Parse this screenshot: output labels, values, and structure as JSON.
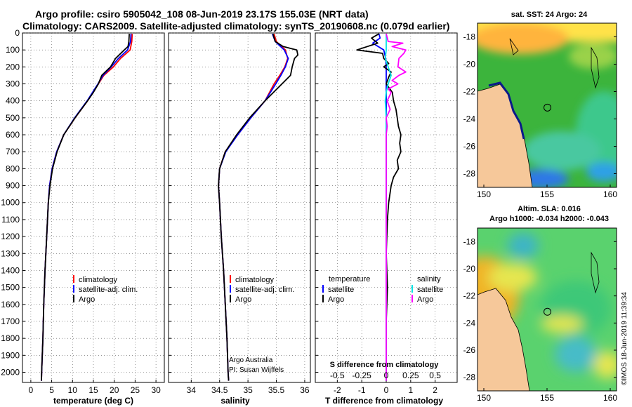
{
  "header": {
    "title_line1": "Argo profile: csiro 5905042_108 08-Jun-2019 23.17S 155.03E (NRT data)",
    "title_line2": "Climatology: CARS2009. Satellite-adjusted climatology: synTS_20190608.nc (0.079d earlier)"
  },
  "colors": {
    "climatology": "#ff0000",
    "satellite": "#0000ff",
    "argo": "#000000",
    "s_satellite": "#00e6e6",
    "s_argo": "#ff00ff",
    "land": "#f6c89a",
    "gridline": "#555555"
  },
  "depth_axis": {
    "ylim": [
      0,
      2060
    ],
    "ticks": [
      0,
      100,
      200,
      300,
      400,
      500,
      600,
      700,
      800,
      900,
      1000,
      1100,
      1200,
      1300,
      1400,
      1500,
      1600,
      1700,
      1800,
      1900,
      2000
    ],
    "tick_labels": [
      "0",
      "100",
      "200",
      "300",
      "400",
      "500",
      "600",
      "700",
      "800",
      "900",
      "1000",
      "1100",
      "1200",
      "1300",
      "1400",
      "1500",
      "1600",
      "1700",
      "1800",
      "1900",
      "2000"
    ]
  },
  "footer": {
    "credit1": "Argo Australia",
    "credit2": "PI: Susan Wijffels",
    "stamp": "©IMOS 18-Jun-2019 11:39:34"
  },
  "chart_data": [
    {
      "type": "line",
      "title": "",
      "xlabel": "temperature (deg C)",
      "ylabel": "",
      "xlim": [
        -2,
        32
      ],
      "ylim": [
        2060,
        0
      ],
      "x_ticks": [
        0,
        5,
        10,
        15,
        20,
        25,
        30
      ],
      "x_tick_labels": [
        "0",
        "5",
        "10",
        "15",
        "20",
        "25",
        "30"
      ],
      "legend": [
        "climatology",
        "satellite-adj. clim.",
        "Argo"
      ],
      "legend_placement": "lower-right",
      "series": [
        {
          "name": "climatology",
          "color_key": "climatology",
          "depth": [
            5,
            50,
            100,
            150,
            200,
            250,
            300,
            400,
            500,
            600,
            700,
            800,
            900,
            1000,
            1200,
            1400,
            1600,
            1800,
            2000,
            2050
          ],
          "values": [
            24.3,
            24.2,
            23.8,
            21.5,
            19.8,
            17.5,
            16.2,
            13.6,
            10.6,
            7.9,
            6.2,
            5.1,
            4.5,
            4.2,
            3.8,
            3.4,
            3.1,
            2.9,
            2.6,
            2.55
          ]
        },
        {
          "name": "satellite-adj. clim.",
          "color_key": "satellite",
          "depth": [
            5,
            50,
            100,
            150,
            200,
            250,
            300,
            400,
            500,
            600,
            700,
            800,
            900,
            1000,
            1200,
            1400,
            1600,
            1800,
            2000,
            2050
          ],
          "values": [
            24.0,
            23.9,
            23.2,
            21.0,
            19.3,
            17.3,
            16.1,
            13.5,
            10.5,
            7.9,
            6.2,
            5.1,
            4.5,
            4.2,
            3.8,
            3.4,
            3.1,
            2.9,
            2.6,
            2.55
          ]
        },
        {
          "name": "Argo",
          "color_key": "argo",
          "depth": [
            5,
            50,
            80,
            100,
            150,
            200,
            250,
            300,
            350,
            400,
            500,
            600,
            700,
            800,
            900,
            1000,
            1200,
            1400,
            1600,
            1800,
            2000,
            2050
          ],
          "values": [
            23.6,
            23.5,
            23.3,
            22.4,
            20.3,
            19.1,
            17.0,
            16.2,
            15.0,
            13.6,
            10.6,
            7.9,
            6.3,
            5.2,
            4.6,
            4.2,
            3.8,
            3.4,
            3.1,
            2.9,
            2.6,
            2.55
          ]
        }
      ]
    },
    {
      "type": "line",
      "title": "",
      "xlabel": "salinity",
      "ylabel": "",
      "xlim": [
        33.6,
        36.1
      ],
      "ylim": [
        2060,
        0
      ],
      "x_ticks": [
        34,
        34.5,
        35,
        35.5,
        36
      ],
      "x_tick_labels": [
        "34",
        "34.5",
        "35",
        "35.5",
        "36"
      ],
      "legend": [
        "climatology",
        "satellite-adj. clim.",
        "Argo"
      ],
      "legend_placement": "lower-right",
      "series": [
        {
          "name": "climatology",
          "color_key": "climatology",
          "depth": [
            5,
            50,
            100,
            150,
            200,
            250,
            300,
            400,
            500,
            600,
            700,
            800,
            900,
            1000,
            1200,
            1400,
            1600,
            1800,
            2000,
            2050
          ],
          "values": [
            35.46,
            35.5,
            35.66,
            35.7,
            35.65,
            35.56,
            35.46,
            35.3,
            35.05,
            34.82,
            34.6,
            34.5,
            34.48,
            34.5,
            34.53,
            34.57,
            34.6,
            34.63,
            34.65,
            34.66
          ]
        },
        {
          "name": "satellite-adj. clim.",
          "color_key": "satellite",
          "depth": [
            5,
            50,
            100,
            150,
            200,
            250,
            300,
            400,
            500,
            600,
            700,
            800,
            900,
            1000,
            1200,
            1400,
            1600,
            1800,
            2000,
            2050
          ],
          "values": [
            35.43,
            35.48,
            35.64,
            35.71,
            35.66,
            35.58,
            35.49,
            35.3,
            35.05,
            34.82,
            34.61,
            34.5,
            34.48,
            34.5,
            34.53,
            34.57,
            34.6,
            34.63,
            34.65,
            34.66
          ]
        },
        {
          "name": "Argo",
          "color_key": "argo",
          "depth": [
            5,
            50,
            80,
            100,
            130,
            150,
            200,
            250,
            300,
            400,
            500,
            600,
            700,
            800,
            900,
            1000,
            1200,
            1400,
            1600,
            1800,
            2000,
            2050
          ],
          "values": [
            35.44,
            35.48,
            35.62,
            35.86,
            35.88,
            35.82,
            35.78,
            35.75,
            35.6,
            35.3,
            35.03,
            34.8,
            34.6,
            34.5,
            34.48,
            34.5,
            34.53,
            34.57,
            34.6,
            34.63,
            34.65,
            34.66
          ]
        }
      ]
    },
    {
      "type": "line",
      "title": "",
      "xlabel": "T difference from climatology",
      "xlabel2": "S difference from climatology",
      "ylabel": "",
      "xlim": [
        -2.9,
        2.9
      ],
      "ylim": [
        2060,
        0
      ],
      "x_ticks": [
        -2,
        -1,
        0,
        1,
        2
      ],
      "x_tick_labels": [
        "-2",
        "-1",
        "0",
        "1",
        "2"
      ],
      "s_ticks": [
        -0.5,
        -0.25,
        0,
        0.25,
        0.5
      ],
      "s_tick_labels": [
        "-0.5",
        "-0.25",
        "0",
        "0.25",
        "0.5"
      ],
      "s_scale": 4,
      "legend_t_title": "temperature",
      "legend_s_title": "salinity",
      "legend_t": [
        "satellite",
        "Argo"
      ],
      "legend_s": [
        "satellite",
        "Argo"
      ],
      "legend_placement": "lower-center",
      "series": [
        {
          "name": "T satellite",
          "color_key": "satellite",
          "scale": 1,
          "depth": [
            5,
            30,
            60,
            100,
            150,
            200,
            300,
            500,
            1000,
            2050
          ],
          "values": [
            -0.3,
            -0.25,
            -0.55,
            -0.1,
            -0.02,
            0,
            0,
            0,
            0,
            0
          ]
        },
        {
          "name": "T Argo",
          "color_key": "argo",
          "scale": 1,
          "depth": [
            5,
            30,
            60,
            100,
            120,
            150,
            180,
            200,
            230,
            260,
            300,
            350,
            400,
            450,
            500,
            550,
            600,
            650,
            700,
            750,
            800,
            850,
            900,
            1000,
            1100,
            1300,
            1500,
            1700,
            1900,
            2050
          ],
          "values": [
            -0.3,
            -0.6,
            -0.35,
            -1.2,
            -0.15,
            -0.1,
            0.1,
            -0.1,
            0.2,
            0.1,
            0.0,
            0.25,
            0.3,
            0.4,
            0.45,
            0.5,
            0.6,
            0.55,
            0.6,
            0.45,
            0.5,
            0.3,
            0.2,
            0.1,
            0.05,
            0.0,
            0.05,
            0.0,
            0.0,
            0.0
          ]
        },
        {
          "name": "S satellite",
          "color_key": "s_satellite",
          "scale": 4,
          "depth": [
            5,
            100,
            150,
            200,
            250,
            300,
            350,
            400,
            500,
            700,
            1000,
            1500,
            2050
          ],
          "values": [
            0.0,
            0.0,
            -0.01,
            0.02,
            0.05,
            0.02,
            0.0,
            -0.01,
            0.0,
            0.0,
            0.0,
            0.0,
            0.0
          ]
        },
        {
          "name": "S Argo",
          "color_key": "s_argo",
          "scale": 4,
          "depth": [
            5,
            50,
            60,
            80,
            100,
            120,
            150,
            200,
            230,
            250,
            280,
            300,
            330,
            350,
            400,
            450,
            500,
            550,
            600,
            700,
            800,
            900,
            1000,
            1500,
            2050
          ],
          "values": [
            0.0,
            0.02,
            0.17,
            0.06,
            0.2,
            0.18,
            0.13,
            0.12,
            0.2,
            0.13,
            0.06,
            0.12,
            0.02,
            0.05,
            0.01,
            0.04,
            0.0,
            0.01,
            0.0,
            0.0,
            0.0,
            0.0,
            0.0,
            0.0,
            0.0
          ]
        }
      ]
    },
    {
      "type": "heatmap",
      "title": "sat. SST: 24 Argo: 24",
      "xlabel": "",
      "ylabel": "",
      "xlim": [
        149.5,
        160.5
      ],
      "ylim": [
        -29,
        -17
      ],
      "x_ticks": [
        150,
        155,
        160
      ],
      "x_tick_labels": [
        "150",
        "155",
        "160"
      ],
      "y_ticks": [
        -18,
        -20,
        -22,
        -24,
        -26,
        -28
      ],
      "y_tick_labels": [
        "-18",
        "-20",
        "-22",
        "-24",
        "-26",
        "-28"
      ],
      "float_position": [
        155.03,
        -23.17
      ]
    },
    {
      "type": "heatmap",
      "title": "Altim. SLA: 0.016",
      "subtitle": "Argo h1000: -0.034 h2000: -0.043",
      "xlabel": "",
      "ylabel": "",
      "xlim": [
        149.5,
        160.5
      ],
      "ylim": [
        -29,
        -17
      ],
      "x_ticks": [
        150,
        155,
        160
      ],
      "x_tick_labels": [
        "150",
        "155",
        "160"
      ],
      "y_ticks": [
        -18,
        -20,
        -22,
        -24,
        -26,
        -28
      ],
      "y_tick_labels": [
        "-18",
        "-20",
        "-22",
        "-24",
        "-26",
        "-28"
      ],
      "float_position": [
        155.03,
        -23.17
      ]
    }
  ]
}
